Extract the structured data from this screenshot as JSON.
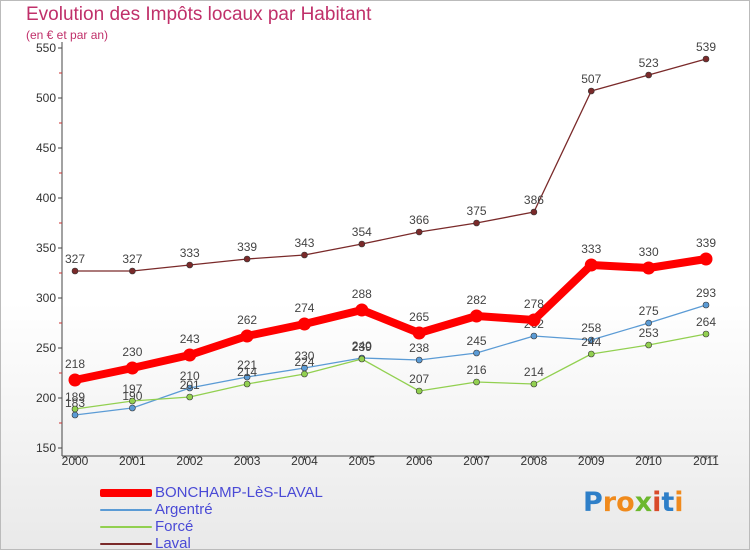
{
  "title": "Evolution des Impôts locaux par Habitant",
  "subtitle": "(en € et par an)",
  "logo": {
    "letters": [
      "P",
      "r",
      "o",
      "x",
      "i",
      "t",
      "i"
    ],
    "colors": [
      "#2e7fc8",
      "#f08a1c",
      "#f08a1c",
      "#6cb82d",
      "#d94a2a",
      "#2e7fc8",
      "#f08a1c"
    ]
  },
  "chart_data": {
    "type": "line",
    "categories": [
      "2000",
      "2001",
      "2002",
      "2003",
      "2004",
      "2005",
      "2006",
      "2007",
      "2008",
      "2009",
      "2010",
      "2011"
    ],
    "ylim": [
      150,
      550
    ],
    "yticks": [
      "150",
      "200",
      "250",
      "300",
      "350",
      "400",
      "450",
      "500",
      "550"
    ],
    "grid": false,
    "legend_position": "bottom-left",
    "series": [
      {
        "name": "Laval",
        "color": "#7a2a2a",
        "values": [
          327,
          327,
          333,
          339,
          343,
          354,
          366,
          375,
          386,
          507,
          523,
          539
        ]
      },
      {
        "name": "Argentré",
        "color": "#5b9bd5",
        "values": [
          183,
          190,
          210,
          221,
          230,
          240,
          238,
          245,
          262,
          258,
          275,
          293
        ]
      },
      {
        "name": "Forcé",
        "color": "#92d050",
        "values": [
          189,
          197,
          201,
          214,
          224,
          239,
          207,
          216,
          214,
          244,
          253,
          264
        ]
      },
      {
        "name": "BONCHAMP-LèS-LAVAL",
        "color": "#ff0000",
        "values": [
          218,
          230,
          243,
          262,
          274,
          288,
          265,
          282,
          278,
          333,
          330,
          339
        ]
      }
    ],
    "legend_order": [
      "BONCHAMP-LèS-LAVAL",
      "Argentré",
      "Forcé",
      "Laval"
    ]
  }
}
